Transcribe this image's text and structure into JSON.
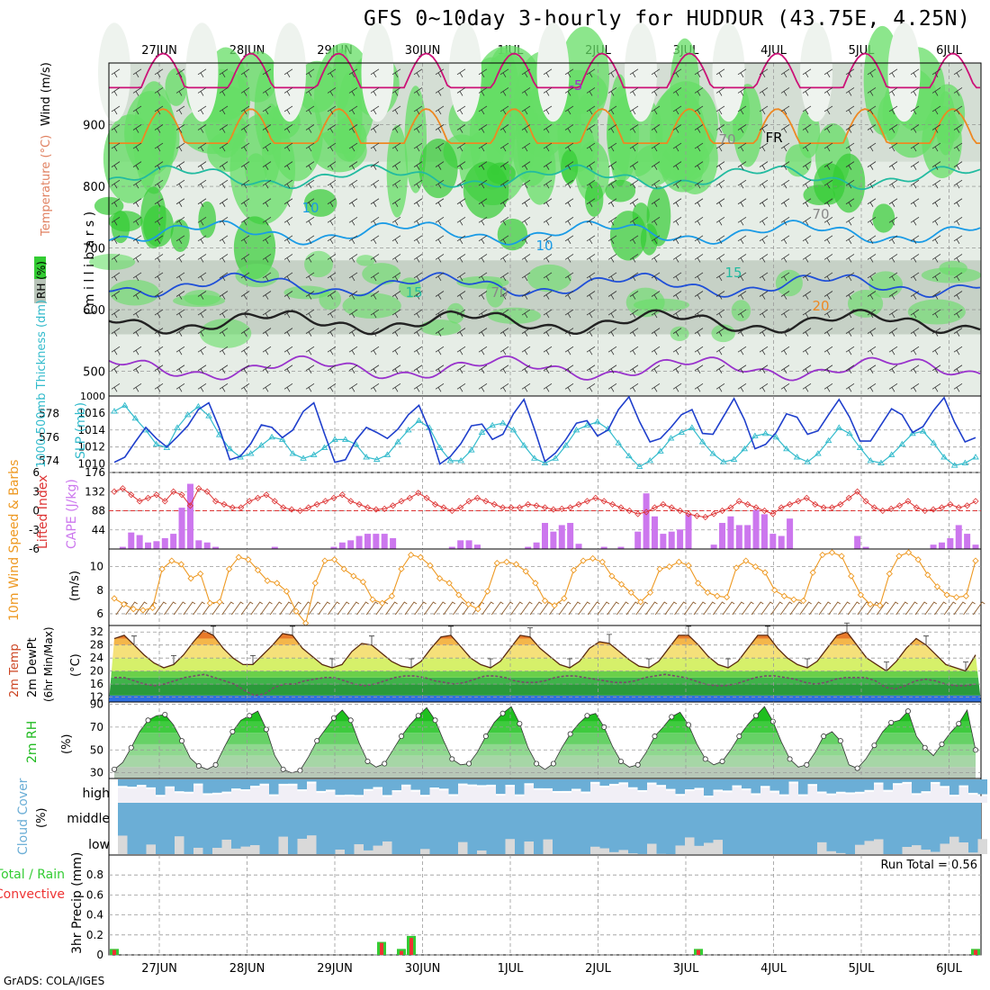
{
  "title": "GFS 0~10day 3-hourly for HUDDUR (43.75E, 4.25N)",
  "credit": "GrADS: COLA/IGES",
  "colors": {
    "rh_green_dark": "#33cc33",
    "rh_green_light": "#66dd66",
    "rh_gray": "#b8c4b8",
    "temp_purple": "#9933cc",
    "temp_blue": "#1f4fd8",
    "temp_lightblue": "#1a9be6",
    "temp_teal": "#22bba0",
    "temp_orange": "#ee8822",
    "temp_magenta": "#cc1177",
    "slp_blue": "#1f3fcc",
    "thick_cyan": "#33bbcc",
    "cape_purple": "#cc77ee",
    "li_red": "#dd3333",
    "wind_orange": "#ee9922",
    "rh2m_green": "#22bb22",
    "cloud_blue": "#6baed6",
    "precip_green": "#33cc33",
    "precip_red": "#ee3333"
  },
  "chart_data": [
    {
      "type": "heatmap",
      "panel": "cross-section",
      "labels": {
        "rh": "RH (%)",
        "temperature": "Temperature (°C)",
        "wind": "Wind (m/s)",
        "yunit": "( m i l l i b a r s )"
      },
      "x_dates": [
        "27JUN",
        "28JUN",
        "29JUN",
        "30JUN",
        "1JUL",
        "2JUL",
        "3JUL",
        "4JUL",
        "5JUL",
        "6JUL"
      ],
      "yticks": [
        500,
        600,
        700,
        800,
        900
      ],
      "ylim": [
        1000,
        460
      ],
      "contour_labels": [
        "-5",
        "FR",
        "10",
        "10",
        "15",
        "15",
        "20",
        "70",
        "70",
        "70"
      ],
      "isotherms": [
        {
          "value": -5,
          "level": 505
        },
        {
          "value": 0,
          "level": 580
        },
        {
          "value": 5,
          "level": 640
        },
        {
          "value": 10,
          "level": 725
        },
        {
          "value": 15,
          "level": 815
        },
        {
          "value": 20,
          "level": 870
        },
        {
          "value": 25,
          "level": 960
        }
      ]
    },
    {
      "type": "line",
      "panel": "slp-thickness",
      "labels": {
        "slp": "SLP (mb)",
        "thickness": "1000-500mb Thickness (dm)"
      },
      "yticks_left": [
        574,
        576,
        578
      ],
      "yticks_right": [
        1010,
        1012,
        1014,
        1016
      ],
      "right_top_tick": "1000",
      "slp_ylim": [
        1009,
        1018
      ],
      "thickness_ylim": [
        573,
        579.5
      ],
      "series": [
        {
          "name": "SLP",
          "values": [
            1010.2,
            1010.8,
            1012.6,
            1014.3,
            1013.0,
            1012.0,
            1013.2,
            1014.5,
            1016.4,
            1017.2,
            1014.2,
            1010.5,
            1010.9,
            1012.4,
            1014.6,
            1014.3,
            1013.1,
            1014.0,
            1016.2,
            1017.2,
            1013.6,
            1010.2,
            1010.5,
            1012.8,
            1014.3,
            1013.7,
            1013.0,
            1014.1,
            1015.8,
            1016.9,
            1014.0,
            1010.0,
            1010.9,
            1012.4,
            1014.5,
            1014.7,
            1012.9,
            1013.5,
            1015.9,
            1017.6,
            1014.1,
            1010.3,
            1011.3,
            1012.9,
            1014.8,
            1015.1,
            1013.3,
            1014.0,
            1016.4,
            1017.9,
            1015.0,
            1012.6,
            1013.0,
            1014.3,
            1015.8,
            1016.4,
            1013.6,
            1013.5,
            1015.6,
            1017.7,
            1015.2,
            1011.8,
            1012.3,
            1013.7,
            1015.9,
            1015.5,
            1013.5,
            1013.9,
            1015.8,
            1017.6,
            1015.5,
            1012.7,
            1012.7,
            1014.6,
            1016.5,
            1015.8,
            1013.7,
            1014.4,
            1016.3,
            1017.8,
            1014.9,
            1012.6,
            1013.1
          ]
        },
        {
          "name": "Thickness",
          "values": [
            578.2,
            578.7,
            577.6,
            576.6,
            575.4,
            575.1,
            576.8,
            577.9,
            578.6,
            577.8,
            576.2,
            575.0,
            574.3,
            574.6,
            575.3,
            576.0,
            575.8,
            574.6,
            574.2,
            574.5,
            575.1,
            575.8,
            575.8,
            575.4,
            574.3,
            574.1,
            574.5,
            575.6,
            576.6,
            577.4,
            576.8,
            575.1,
            574.0,
            574.0,
            574.9,
            576.4,
            577.0,
            577.2,
            576.6,
            575.3,
            574.2,
            573.8,
            574.2,
            575.3,
            576.6,
            577.0,
            577.3,
            576.7,
            575.5,
            574.4,
            573.5,
            574.0,
            574.8,
            575.9,
            576.4,
            576.8,
            575.6,
            574.6,
            573.9,
            574.1,
            575.0,
            576.1,
            576.3,
            576.0,
            575.0,
            574.3,
            573.9,
            574.6,
            575.7,
            576.8,
            576.3,
            575.1,
            574.0,
            573.8,
            574.5,
            575.4,
            576.3,
            576.5,
            575.5,
            574.3,
            573.6,
            573.8,
            574.3
          ]
        }
      ]
    },
    {
      "type": "bar",
      "panel": "cape-lifted-index",
      "labels": {
        "cape": "CAPE (J/kg)",
        "li": "Lifted Index"
      },
      "yticks_right": [
        44,
        88,
        132,
        176
      ],
      "yticks_left": [
        "6",
        "3",
        "0",
        "-3",
        "-6"
      ],
      "cape_ylim": [
        0,
        176
      ],
      "li_ylim": [
        6,
        -6
      ],
      "series": [
        {
          "name": "CAPE",
          "values": [
            0,
            5,
            38,
            32,
            15,
            18,
            25,
            35,
            95,
            150,
            20,
            15,
            5,
            0,
            0,
            0,
            0,
            0,
            0,
            5,
            0,
            0,
            0,
            0,
            0,
            0,
            5,
            15,
            20,
            30,
            35,
            35,
            35,
            25,
            0,
            0,
            0,
            0,
            0,
            0,
            5,
            20,
            20,
            10,
            0,
            0,
            0,
            0,
            0,
            5,
            15,
            60,
            40,
            55,
            60,
            12,
            0,
            0,
            5,
            0,
            5,
            0,
            40,
            128,
            75,
            35,
            40,
            45,
            80,
            0,
            0,
            10,
            60,
            75,
            55,
            55,
            90,
            80,
            35,
            30,
            70,
            0,
            0,
            0,
            0,
            0,
            0,
            0,
            30,
            5,
            0,
            0,
            0,
            0,
            0,
            0,
            0,
            10,
            15,
            25,
            55,
            35,
            10
          ]
        },
        {
          "name": "Lifted Index",
          "values": [
            3.0,
            3.5,
            2.5,
            1.5,
            2.0,
            2.5,
            1.5,
            3.0,
            2.5,
            0.8,
            3.5,
            3.0,
            1.5,
            1.0,
            0.5,
            0.5,
            1.5,
            2.0,
            2.5,
            1.5,
            0.5,
            0.2,
            0.0,
            0.5,
            1.0,
            1.5,
            2.0,
            2.5,
            1.5,
            1.0,
            0.5,
            0.2,
            0.3,
            0.8,
            1.5,
            2.0,
            2.8,
            2.0,
            1.0,
            0.5,
            0.0,
            0.5,
            1.5,
            2.0,
            1.5,
            1.0,
            0.5,
            0.5,
            0.5,
            1.0,
            0.8,
            0.5,
            0.2,
            0.3,
            0.5,
            1.0,
            1.5,
            2.0,
            1.5,
            1.0,
            0.5,
            0.0,
            -0.5,
            -0.2,
            0.5,
            1.0,
            0.5,
            0.0,
            -0.5,
            -0.8,
            -1.0,
            -0.5,
            0.0,
            0.5,
            1.5,
            1.0,
            0.5,
            0.0,
            -0.5,
            0.5,
            1.0,
            1.5,
            2.0,
            1.0,
            0.5,
            0.5,
            1.0,
            2.0,
            3.0,
            1.5,
            0.5,
            0.0,
            0.3,
            0.8,
            1.5,
            0.5,
            0.0,
            0.2,
            0.5,
            1.0,
            0.5,
            0.8,
            1.5
          ]
        }
      ]
    },
    {
      "type": "line",
      "panel": "10m-wind",
      "labels": {
        "title": "10m Wind Speed & Barbs",
        "unit": "(m/s)"
      },
      "yticks": [
        6,
        8,
        10
      ],
      "ylim": [
        5,
        11.5
      ],
      "series": [
        {
          "name": "10m Wind Speed",
          "values": [
            7.3,
            6.8,
            6.4,
            6.3,
            6.5,
            9.8,
            10.5,
            10.2,
            9.0,
            9.4,
            6.9,
            7.0,
            9.8,
            10.8,
            10.6,
            9.7,
            8.8,
            8.6,
            7.9,
            6.2,
            5.2,
            8.6,
            10.5,
            10.6,
            9.8,
            9.2,
            8.7,
            7.2,
            6.9,
            7.5,
            9.8,
            11.0,
            10.8,
            10.1,
            9.0,
            8.6,
            7.6,
            6.8,
            6.4,
            7.9,
            10.3,
            10.4,
            10.2,
            9.6,
            8.6,
            7.1,
            6.7,
            7.3,
            9.7,
            10.5,
            10.7,
            10.4,
            9.2,
            8.5,
            7.8,
            7.0,
            7.8,
            9.8,
            10.0,
            10.4,
            10.1,
            8.6,
            7.8,
            7.5,
            7.4,
            9.9,
            10.5,
            10.0,
            9.5,
            8.0,
            7.5,
            7.2,
            7.1,
            9.5,
            11.0,
            11.2,
            10.9,
            9.2,
            7.6,
            6.8,
            6.7,
            9.4,
            10.9,
            11.2,
            10.6,
            9.3,
            8.3,
            7.6,
            7.4,
            7.5,
            10.5
          ]
        }
      ]
    },
    {
      "type": "area",
      "panel": "2m-temp",
      "labels": {
        "temp": "2m Temp",
        "dewpt": "2m DewPt",
        "minmax": "(6hr Min/Max)",
        "unit": "(°C)"
      },
      "yticks": [
        12,
        16,
        20,
        24,
        28,
        32
      ],
      "ylim": [
        10.5,
        34
      ],
      "series": [
        {
          "name": "2m Temp",
          "values": [
            30,
            31,
            28,
            25,
            22.5,
            21,
            22,
            25,
            29,
            32.5,
            31,
            27,
            24,
            22,
            22,
            25,
            28,
            31.5,
            31,
            27,
            24.5,
            22,
            21,
            22,
            26,
            28.5,
            28,
            25.5,
            23,
            21.5,
            21,
            23,
            27,
            30.5,
            31,
            27.5,
            24,
            22,
            21,
            23,
            27,
            31,
            30.5,
            27,
            24.5,
            22,
            21,
            23,
            27,
            29,
            28.5,
            26,
            23.5,
            21.5,
            21,
            23,
            27,
            31,
            31,
            28,
            24.5,
            22,
            21,
            23,
            27,
            31,
            31,
            27,
            24,
            22,
            21,
            23,
            27,
            31,
            32,
            28,
            24,
            22,
            20,
            23,
            27,
            30,
            28,
            25,
            22,
            21,
            20,
            25
          ]
        },
        {
          "name": "2m DewPt",
          "values": [
            18,
            18,
            17,
            16,
            15.5,
            16,
            17,
            18,
            18.5,
            19,
            18,
            17,
            16,
            14,
            12.5,
            13,
            15,
            16,
            16,
            17,
            17.5,
            18,
            18,
            17,
            16,
            15.5,
            16,
            17,
            18,
            18.5,
            18.5,
            18,
            17,
            16.5,
            16,
            16.5,
            17.5,
            18.5,
            18.5,
            18,
            17,
            16.5,
            16.5,
            17,
            18,
            18.5,
            18.5,
            18,
            17.5,
            17,
            16.5,
            16.5,
            17,
            18,
            18.5,
            19,
            18.5,
            18,
            17,
            16,
            15.5,
            15.5,
            16,
            17,
            18,
            18.5,
            18.5,
            18,
            17.5,
            16.5,
            16,
            16.5,
            17.5,
            18,
            18,
            18,
            17,
            15,
            14.5,
            15.5,
            17,
            17.5,
            17,
            16,
            15.5,
            15.5,
            16
          ]
        }
      ]
    },
    {
      "type": "area",
      "panel": "2m-rh",
      "labels": {
        "rh": "2m RH",
        "unit": "(%)"
      },
      "yticks": [
        30,
        50,
        70,
        90
      ],
      "ylim": [
        25,
        92
      ],
      "series": [
        {
          "name": "2m RH",
          "values": [
            33,
            39,
            52,
            66,
            76,
            80,
            81,
            72,
            58,
            43,
            36,
            33,
            37,
            52,
            66,
            76,
            80,
            84,
            68,
            45,
            33,
            30,
            32,
            44,
            58,
            68,
            78,
            85,
            76,
            56,
            40,
            35,
            38,
            50,
            62,
            72,
            80,
            87,
            76,
            58,
            42,
            37,
            38,
            48,
            62,
            74,
            82,
            88,
            73,
            52,
            38,
            33,
            38,
            52,
            64,
            73,
            80,
            82,
            70,
            53,
            40,
            35,
            37,
            48,
            62,
            70,
            79,
            83,
            72,
            55,
            42,
            37,
            40,
            50,
            62,
            72,
            80,
            88,
            75,
            57,
            42,
            35,
            37,
            48,
            62,
            66,
            58,
            37,
            34,
            42,
            54,
            66,
            74,
            76,
            84,
            62,
            52,
            45,
            55,
            65,
            73,
            85,
            50
          ]
        }
      ]
    },
    {
      "type": "area",
      "panel": "cloud-cover",
      "labels": {
        "title": "Cloud Cover",
        "unit": "(%)",
        "high": "high",
        "middle": "middle",
        "low": "low"
      }
    },
    {
      "type": "bar",
      "panel": "precip",
      "labels": {
        "title": "3hr Precip (mm)",
        "total": "Total / Rain",
        "convective": "Convective",
        "run_total": "Run Total = 0.56"
      },
      "yticks": [
        0,
        0.2,
        0.4,
        0.6,
        0.8
      ],
      "ylim": [
        0,
        1.0
      ],
      "events": [
        {
          "index": 0,
          "total": 0.06,
          "convective": 0.05
        },
        {
          "index": 27,
          "total": 0.13,
          "convective": 0.12
        },
        {
          "index": 29,
          "total": 0.06,
          "convective": 0.04
        },
        {
          "index": 30,
          "total": 0.19,
          "convective": 0.17
        },
        {
          "index": 59,
          "total": 0.06,
          "convective": 0.05
        },
        {
          "index": 87,
          "total": 0.06,
          "convective": 0.05
        }
      ]
    }
  ]
}
